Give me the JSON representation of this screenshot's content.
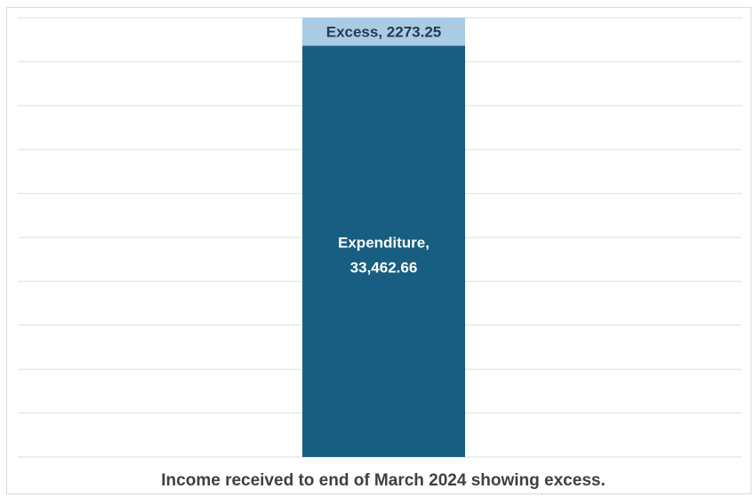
{
  "chart_data": {
    "type": "bar",
    "stacked": true,
    "title": "Income received to end of March 2024 showing excess.",
    "categories": [
      ""
    ],
    "series": [
      {
        "name": "Expenditure",
        "values": [
          33462.66
        ],
        "label": "Expenditure, 33,462.66",
        "color": "#175e82",
        "label_color": "#ffffff"
      },
      {
        "name": "Excess",
        "values": [
          2273.25
        ],
        "label": "Excess, 2273.25",
        "color": "#a9cbe6",
        "label_color": "#1f3b57"
      }
    ],
    "ylim": [
      0,
      35735.91
    ],
    "grid": true,
    "gridline_count": 10,
    "legend": "none",
    "gridline_color": "#dedede"
  }
}
